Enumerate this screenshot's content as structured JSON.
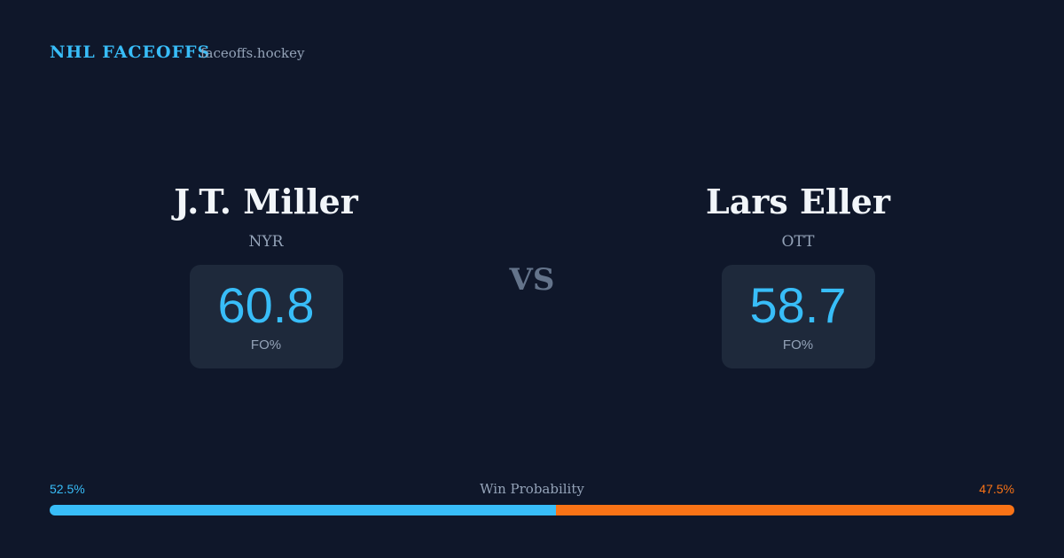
{
  "header": {
    "title": "NHL FACEOFFS",
    "site": "faceoffs.hockey"
  },
  "players": [
    {
      "name": "J.T. Miller",
      "team": "NYR",
      "fo_pct": 60.8,
      "fo_label": "FO%"
    },
    {
      "name": "Lars Eller",
      "team": "OTT",
      "fo_pct": 58.7,
      "fo_label": "FO%"
    }
  ],
  "vs": "VS",
  "win_probability": {
    "label": "Win Probability",
    "home": {
      "value": 52.5,
      "label": "52.5%",
      "color": "#38bdf8"
    },
    "away": {
      "value": 47.5,
      "label": "47.5%",
      "color": "#f97316"
    }
  }
}
